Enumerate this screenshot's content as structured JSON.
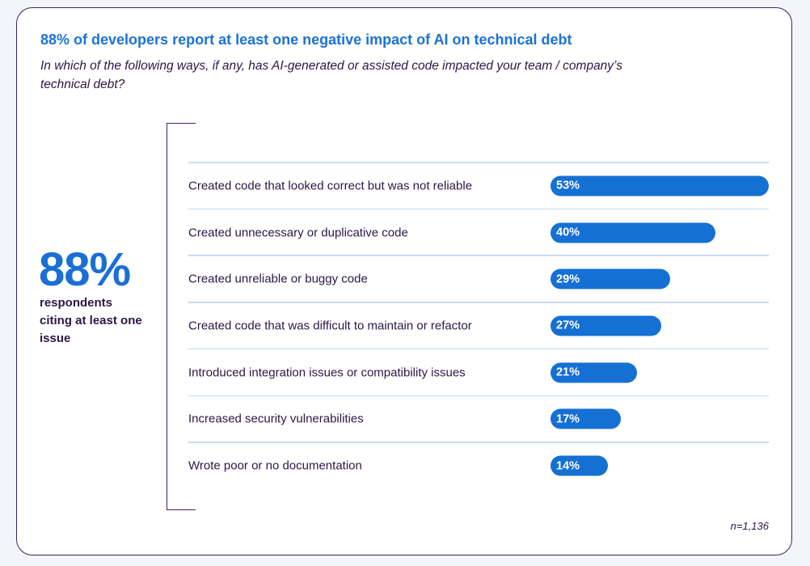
{
  "title": "88% of developers report at least one negative impact of AI on technical debt",
  "subtitle": "In which of the following ways, if any, has AI-generated or assisted code impacted your team / company’s technical debt?",
  "callout": {
    "value": "88%",
    "caption": "respondents citing at least one issue"
  },
  "note": "n=1,136",
  "colors": {
    "bar": "#1570d3",
    "title": "#1a73d6",
    "border": "#3d2360"
  },
  "chart_data": {
    "type": "bar",
    "orientation": "horizontal",
    "categories": [
      "Created code that looked correct but was not reliable",
      "Created unnecessary or duplicative code",
      "Created unreliable or buggy code",
      "Created code that was difficult to maintain or refactor",
      "Introduced integration issues or compatibility issues",
      "Increased security vulnerabilities",
      "Wrote poor or no documentation"
    ],
    "values": [
      53,
      40,
      29,
      27,
      21,
      17,
      14
    ],
    "value_labels": [
      "53%",
      "40%",
      "29%",
      "27%",
      "21%",
      "17%",
      "14%"
    ]
  }
}
